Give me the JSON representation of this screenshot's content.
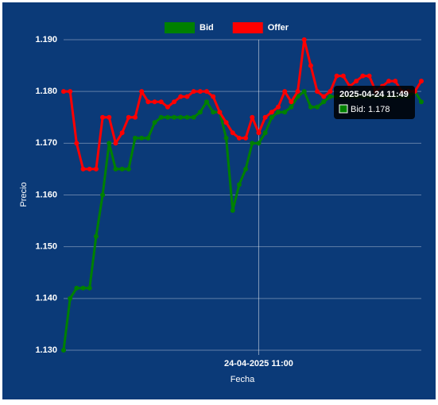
{
  "chart_data": {
    "type": "line",
    "x_label": "Fecha",
    "y_label": "Precio",
    "categories": [
      null,
      null,
      null,
      null,
      null,
      null,
      null,
      null,
      null,
      null,
      null,
      null,
      null,
      null,
      null,
      null,
      null,
      null,
      null,
      null,
      null,
      null,
      null,
      null,
      null,
      null,
      null,
      null,
      null,
      null,
      "24-04-2025 11:00",
      null,
      null,
      null,
      null,
      null,
      null,
      null,
      null,
      null,
      null,
      null,
      null,
      null,
      null,
      null,
      null,
      null,
      null,
      null,
      null,
      null,
      null,
      null,
      null,
      null
    ],
    "series": [
      {
        "name": "Bid",
        "color": "#008000",
        "values": [
          1.13,
          1.14,
          1.142,
          1.142,
          1.142,
          1.152,
          1.16,
          1.17,
          1.165,
          1.165,
          1.165,
          1.171,
          1.171,
          1.171,
          1.174,
          1.175,
          1.175,
          1.175,
          1.175,
          1.175,
          1.175,
          1.176,
          1.178,
          1.176,
          1.176,
          1.171,
          1.157,
          1.162,
          1.165,
          1.17,
          1.17,
          1.172,
          1.175,
          1.176,
          1.176,
          1.177,
          1.179,
          1.18,
          1.177,
          1.177,
          1.178,
          1.179,
          1.179,
          1.179,
          1.179,
          1.179,
          1.179,
          1.179,
          1.179,
          1.179,
          1.179,
          1.179,
          1.179,
          1.179,
          1.18,
          1.178
        ]
      },
      {
        "name": "Offer",
        "color": "#ff0000",
        "values": [
          1.18,
          1.18,
          1.17,
          1.165,
          1.165,
          1.165,
          1.175,
          1.175,
          1.17,
          1.172,
          1.175,
          1.175,
          1.18,
          1.178,
          1.178,
          1.178,
          1.177,
          1.178,
          1.179,
          1.179,
          1.18,
          1.18,
          1.18,
          1.179,
          1.176,
          1.174,
          1.172,
          1.171,
          1.171,
          1.175,
          1.172,
          1.175,
          1.176,
          1.177,
          1.18,
          1.178,
          1.18,
          1.19,
          1.185,
          1.18,
          1.179,
          1.18,
          1.183,
          1.183,
          1.181,
          1.182,
          1.183,
          1.183,
          1.18,
          1.181,
          1.182,
          1.182,
          1.18,
          1.18,
          1.18,
          1.182
        ]
      }
    ],
    "ylim": [
      1.13,
      1.19
    ],
    "yticks": [
      {
        "value": 1.13,
        "label": "1.130"
      },
      {
        "value": 1.14,
        "label": "1.140"
      },
      {
        "value": 1.15,
        "label": "1.150"
      },
      {
        "value": 1.16,
        "label": "1.160"
      },
      {
        "value": 1.17,
        "label": "1.170"
      },
      {
        "value": 1.18,
        "label": "1.180"
      },
      {
        "value": 1.19,
        "label": "1.190"
      }
    ],
    "grid": true,
    "legend": "top",
    "tooltip": {
      "title": "2025-04-24 11:49",
      "label": "Bid: 1.178"
    }
  }
}
